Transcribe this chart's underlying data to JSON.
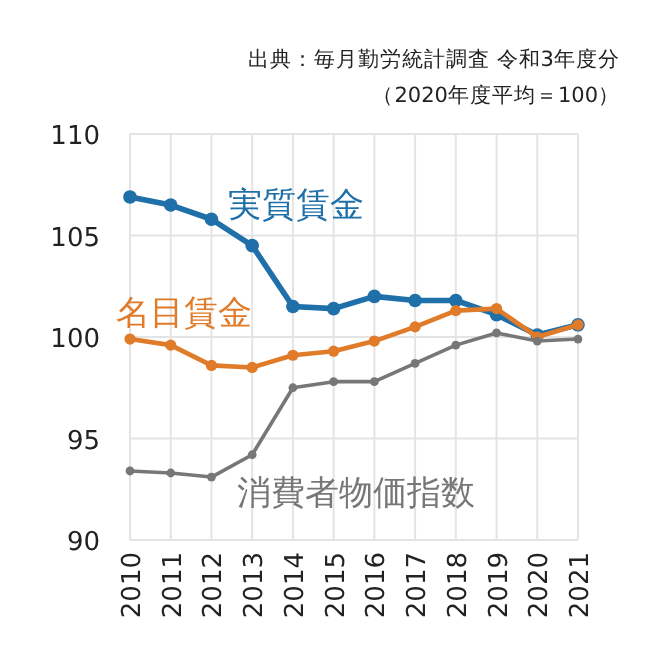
{
  "chart_data": {
    "type": "line",
    "title": "出典：毎月勤労統計調査 令和3年度分",
    "subtitle": "（2020年度平均＝100）",
    "categories": [
      "2010",
      "2011",
      "2012",
      "2013",
      "2014",
      "2015",
      "2016",
      "2017",
      "2018",
      "2019",
      "2020",
      "2021"
    ],
    "ylim": [
      90,
      110
    ],
    "yticks": [
      90,
      95,
      100,
      105,
      110
    ],
    "grid": true,
    "marker": "circle",
    "line_style": "solid",
    "series": [
      {
        "name": "実質賃金",
        "color": "#1f6fa8",
        "values": [
          106.9,
          106.5,
          105.8,
          104.5,
          101.5,
          101.4,
          102.0,
          101.8,
          101.8,
          101.1,
          100.1,
          100.6
        ]
      },
      {
        "name": "名目賃金",
        "color": "#e07b2a",
        "values": [
          99.9,
          99.6,
          98.6,
          98.5,
          99.1,
          99.3,
          99.8,
          100.5,
          101.3,
          101.4,
          100.0,
          100.6
        ]
      },
      {
        "name": "消費者物価指数",
        "color": "#777777",
        "values": [
          93.4,
          93.3,
          93.1,
          94.2,
          97.5,
          97.8,
          97.8,
          98.7,
          99.6,
          100.2,
          99.8,
          99.9
        ]
      }
    ]
  }
}
